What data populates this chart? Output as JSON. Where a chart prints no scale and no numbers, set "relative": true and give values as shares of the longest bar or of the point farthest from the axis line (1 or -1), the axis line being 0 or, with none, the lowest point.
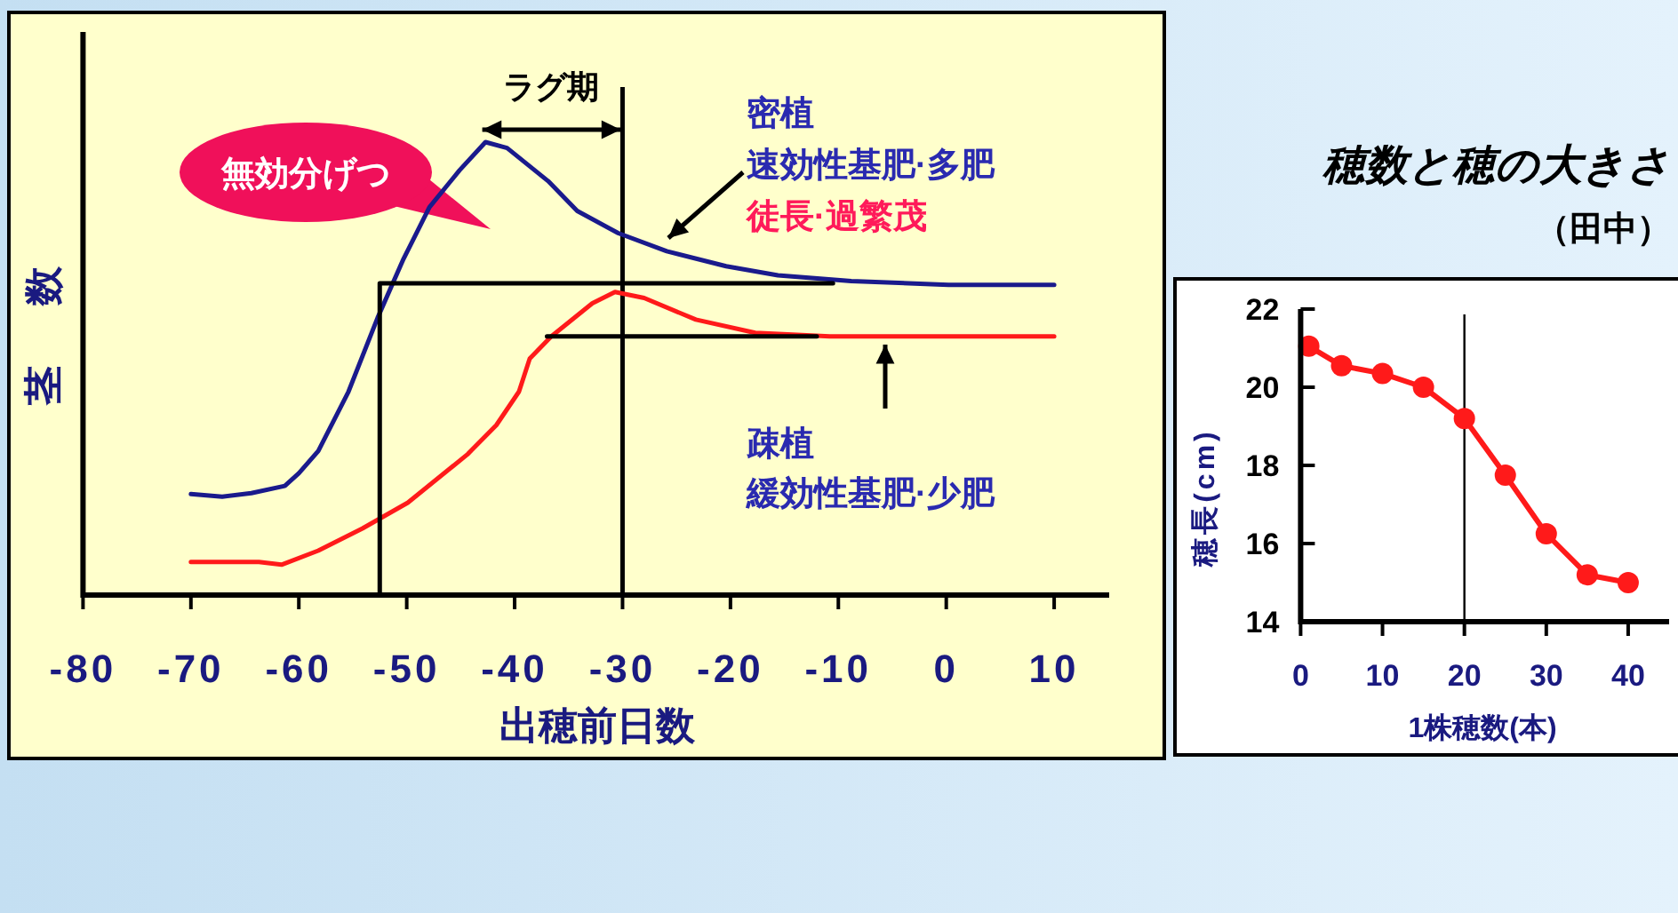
{
  "chart_data": [
    {
      "type": "line",
      "relative": true,
      "xlabel": "出穂前日数",
      "ylabel": "茎 数",
      "xlim": [
        -80,
        15
      ],
      "xticks": [
        -80,
        -70,
        -60,
        -50,
        -40,
        -30,
        -20,
        -10,
        0,
        10
      ],
      "marker": "none",
      "line_style": "solid",
      "series": [
        {
          "color": "#1a1a8c",
          "x": [
            -70,
            -67.1,
            -64.4,
            -61.3,
            -60,
            -58.2,
            -55.4,
            -52.7,
            -50.3,
            -47.9,
            -45.1,
            -42.7,
            -40.7,
            -36.9,
            -34.2,
            -30.4,
            -25.9,
            -20.4,
            -15.6,
            -8.8,
            0.2,
            10
          ],
          "values": [
            0.223,
            0.217,
            0.225,
            0.241,
            0.269,
            0.318,
            0.449,
            0.612,
            0.742,
            0.856,
            0.938,
            1,
            0.987,
            0.914,
            0.848,
            0.799,
            0.759,
            0.726,
            0.706,
            0.693,
            0.685,
            0.685
          ]
        },
        {
          "color": "#ff1a1a",
          "x": [
            -70,
            -63.7,
            -61.6,
            -58.2,
            -54.1,
            -49.9,
            -44.4,
            -41.7,
            -39.6,
            -38.6,
            -36.6,
            -32.8,
            -30.7,
            -28,
            -23.2,
            -17.7,
            -10.8,
            10
          ],
          "values": [
            0.073,
            0.073,
            0.067,
            0.098,
            0.147,
            0.204,
            0.31,
            0.375,
            0.449,
            0.522,
            0.571,
            0.644,
            0.669,
            0.656,
            0.608,
            0.579,
            0.571,
            0.571
          ]
        },
        {
          "color": "#000000",
          "x": [
            -52.5,
            -52.5,
            -10.5
          ],
          "values": [
            0,
            0.688,
            0.688
          ]
        },
        {
          "color": "#000000",
          "x": [
            -37,
            -12
          ],
          "values": [
            0.571,
            0.571
          ]
        }
      ],
      "ref_lines": [
        {
          "axis": "x",
          "value": -30,
          "color": "#000000"
        }
      ],
      "annotations": [
        "ラグ期",
        "無効分げつ",
        "密植",
        "速効性基肥·多肥",
        "徒長·過繁茂",
        "疎植",
        "緩効性基肥·少肥"
      ]
    },
    {
      "type": "line",
      "title": "穂数と穂の大きさ",
      "subtitle": "（田中）",
      "xlabel": "1株穂数(本)",
      "ylabel": "穂長(cm)",
      "xlim": [
        0,
        45
      ],
      "ylim": [
        14,
        22
      ],
      "xticks": [
        0,
        10,
        20,
        30,
        40
      ],
      "yticks": [
        14,
        16,
        18,
        20,
        22
      ],
      "marker": "circle",
      "line_style": "solid",
      "series": [
        {
          "color": "#ff1a1a",
          "x": [
            1,
            5,
            10,
            15,
            20,
            25,
            30,
            35,
            40
          ],
          "values": [
            21.05,
            20.55,
            20.35,
            20,
            19.2,
            17.75,
            16.25,
            15.2,
            15
          ]
        }
      ],
      "ref_lines": [
        {
          "axis": "x",
          "value": 20,
          "color": "#000000"
        }
      ]
    }
  ]
}
